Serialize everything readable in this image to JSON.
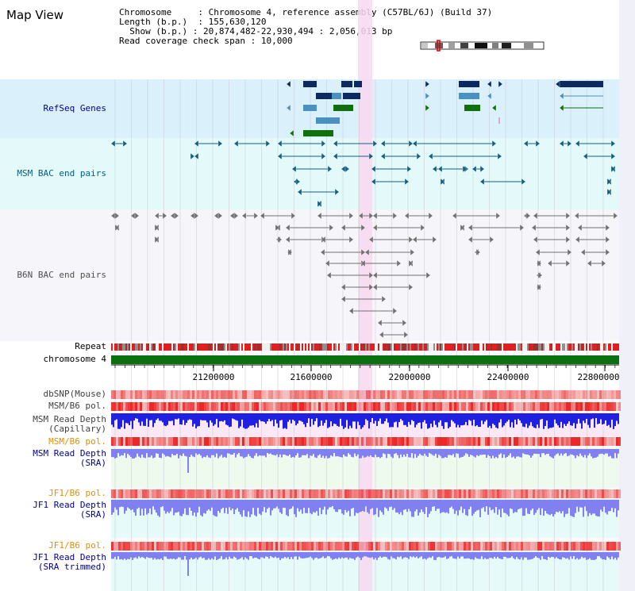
{
  "title": "Map View",
  "info": {
    "chromosome_label": "Chromosome",
    "chromosome_value": "Chromosome 4, reference assembly (C57BL/6J) (Build 37)",
    "length_label": "Length (b.p.)",
    "length_value": "155,630,120",
    "show_label": "Show (b.p.)",
    "show_value": "20,874,482-22,930,494 : 2,056,013 bp",
    "coverage_label": "Read coverage check span",
    "coverage_value": "10,000"
  },
  "tracks": {
    "refseq": "RefSeq Genes",
    "msm_bac": "MSM BAC end pairs",
    "b6n_bac": "B6N BAC end pairs",
    "repeat": "Repeat",
    "chromosome": "chromosome 4",
    "dbsnp": "dbSNP(Mouse)",
    "msm_b6_pol_1": "MSM/B6 pol.",
    "msm_read_depth_cap_1": "MSM Read Depth",
    "msm_read_depth_cap_2": "(Capillary)",
    "msm_b6_pol_2": "MSM/B6 pol.",
    "msm_read_depth_sra_1": "MSM Read Depth",
    "msm_read_depth_sra_2": "(SRA)",
    "jf1_b6_pol_1": "JF1/B6 pol.",
    "jf1_read_depth_sra_1": "JF1 Read Depth",
    "jf1_read_depth_sra_2": "(SRA)",
    "jf1_b6_pol_2": "JF1/B6 pol.",
    "jf1_read_depth_trim_1": "JF1 Read Depth",
    "jf1_read_depth_trim_2": "(SRA trimmed)"
  },
  "ruler": {
    "ticks": [
      "21200000",
      "21600000",
      "22000000",
      "22400000",
      "22800000"
    ]
  },
  "colors": {
    "refseq_bg": "#daf0fa",
    "msm_bac_bg": "#e4fafa",
    "b6n_bac_bg": "#f5f5fa",
    "refseq_dark": "#0a2a60",
    "refseq_mid": "#4a90c0",
    "refseq_green": "#107010",
    "msm_bac_color": "#106080",
    "b6n_bac_color": "#707070",
    "highlight": "#f8d8f0",
    "chromosome_bar": "#0a7010",
    "label_navy": "#000090",
    "label_teal": "#006080",
    "label_gray": "#505050",
    "label_orange": "#e09000",
    "depth_blue": "#2020e0",
    "depth_light": "#8080f0"
  }
}
